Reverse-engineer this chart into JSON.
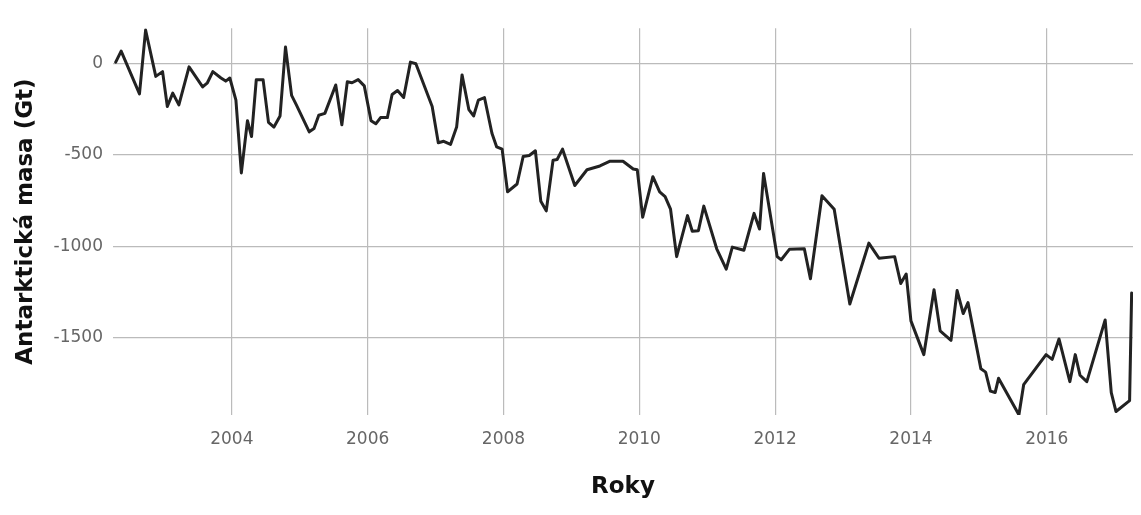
{
  "chart_data": {
    "type": "line",
    "xlabel": "Roky",
    "ylabel": "Antarktická masa (Gt)",
    "xlim": [
      2002.25,
      2017.27
    ],
    "xticks": [
      2004,
      2006,
      2008,
      2010,
      2012,
      2014,
      2016
    ],
    "ylim": [
      -1925,
      195
    ],
    "yticks": [
      -1500,
      -1000,
      -500,
      0
    ],
    "grid": true,
    "marker": "none",
    "line_style": "solid",
    "series": [
      {
        "color": "#222222",
        "x": [
          2002.29,
          2002.37,
          2002.64,
          2002.73,
          2002.88,
          2002.98,
          2003.05,
          2003.13,
          2003.22,
          2003.37,
          2003.57,
          2003.64,
          2003.72,
          2003.84,
          2003.91,
          2003.97,
          2004.06,
          2004.14,
          2004.23,
          2004.29,
          2004.36,
          2004.46,
          2004.54,
          2004.62,
          2004.71,
          2004.79,
          2004.88,
          2004.95,
          2005.14,
          2005.21,
          2005.28,
          2005.37,
          2005.53,
          2005.62,
          2005.7,
          2005.77,
          2005.86,
          2005.95,
          2006.05,
          2006.12,
          2006.19,
          2006.29,
          2006.36,
          2006.44,
          2006.53,
          2006.63,
          2006.71,
          2006.95,
          2007.04,
          2007.12,
          2007.22,
          2007.31,
          2007.39,
          2007.49,
          2007.56,
          2007.63,
          2007.72,
          2007.83,
          2007.9,
          2007.98,
          2008.06,
          2008.2,
          2008.29,
          2008.38,
          2008.47,
          2008.55,
          2008.63,
          2008.73,
          2008.79,
          2008.87,
          2009.05,
          2009.23,
          2009.42,
          2009.57,
          2009.76,
          2009.91,
          2009.97,
          2010.05,
          2010.2,
          2010.3,
          2010.38,
          2010.46,
          2010.55,
          2010.71,
          2010.78,
          2010.87,
          2010.95,
          2011.14,
          2011.28,
          2011.37,
          2011.54,
          2011.69,
          2011.77,
          2011.83,
          2012.03,
          2012.09,
          2012.21,
          2012.43,
          2012.52,
          2012.69,
          2012.87,
          2013.1,
          2013.38,
          2013.53,
          2013.76,
          2013.85,
          2013.93,
          2014.0,
          2014.19,
          2014.34,
          2014.43,
          2014.59,
          2014.68,
          2014.77,
          2014.84,
          2015.03,
          2015.1,
          2015.17,
          2015.24,
          2015.29,
          2015.59,
          2015.66,
          2015.99,
          2016.08,
          2016.18,
          2016.34,
          2016.42,
          2016.49,
          2016.59,
          2016.86,
          2016.95,
          2017.02,
          2017.22,
          2017.25
        ],
        "values": [
          9,
          69,
          -165,
          185,
          -69,
          -43,
          -234,
          -161,
          -225,
          -17,
          -127,
          -104,
          -43,
          -78,
          -95,
          -78,
          -199,
          -598,
          -312,
          -399,
          -87,
          -87,
          -321,
          -347,
          -286,
          92,
          -173,
          -225,
          -373,
          -355,
          -282,
          -272,
          -116,
          -334,
          -99,
          -104,
          -87,
          -121,
          -312,
          -329,
          -295,
          -295,
          -168,
          -147,
          -185,
          9,
          0,
          -234,
          -433,
          -425,
          -442,
          -347,
          -61,
          -251,
          -286,
          -199,
          -185,
          -381,
          -456,
          -468,
          -702,
          -659,
          -508,
          -503,
          -477,
          -754,
          -806,
          -529,
          -525,
          -468,
          -667,
          -581,
          -560,
          -534,
          -534,
          -577,
          -581,
          -841,
          -619,
          -702,
          -728,
          -797,
          -1057,
          -832,
          -918,
          -915,
          -780,
          -1014,
          -1126,
          -1005,
          -1022,
          -820,
          -906,
          -601,
          -1057,
          -1074,
          -1017,
          -1014,
          -1178,
          -723,
          -797,
          -1317,
          -983,
          -1066,
          -1057,
          -1204,
          -1152,
          -1409,
          -1594,
          -1239,
          -1464,
          -1516,
          -1243,
          -1369,
          -1309,
          -1672,
          -1690,
          -1794,
          -1802,
          -1724,
          -1924,
          -1759,
          -1594,
          -1620,
          -1508,
          -1742,
          -1594,
          -1707,
          -1742,
          -1404,
          -1802,
          -1906,
          -1846,
          -1256
        ]
      }
    ]
  }
}
